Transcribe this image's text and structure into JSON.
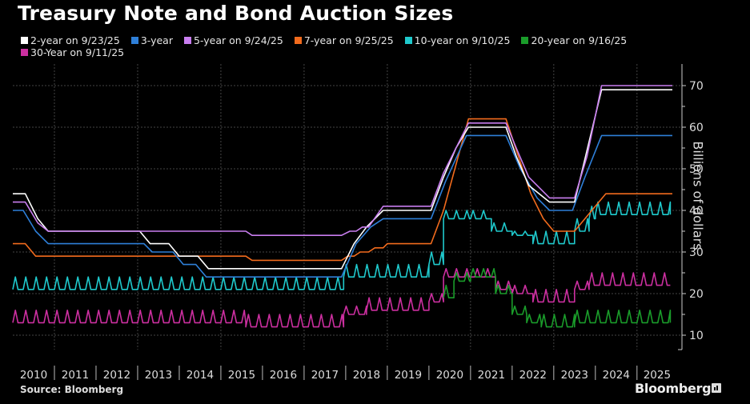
{
  "chart_data": {
    "type": "line",
    "title": "Treasury Note and Bond Auction Sizes",
    "xlabel": "",
    "ylabel": "Billions of dollars",
    "ylim": [
      7,
      74
    ],
    "xlim": [
      2010.0,
      2025.85
    ],
    "y_ticks": [
      10,
      20,
      30,
      40,
      50,
      60,
      70
    ],
    "x_tick_labels": [
      "2010",
      "2011",
      "2012",
      "2013",
      "2014",
      "2015",
      "2016",
      "2017",
      "2018",
      "2019",
      "2020",
      "2021",
      "2022",
      "2023",
      "2024",
      "2025"
    ],
    "grid": true,
    "legend_position": "top-left",
    "y_axis_side": "right",
    "series": [
      {
        "name": "2-year on 9/23/25",
        "color": "#ffffff",
        "kind": "step",
        "points": [
          [
            2010.0,
            44
          ],
          [
            2010.3,
            44
          ],
          [
            2010.6,
            38
          ],
          [
            2010.85,
            35
          ],
          [
            2013.05,
            35
          ],
          [
            2013.3,
            32
          ],
          [
            2013.75,
            32
          ],
          [
            2014.0,
            29
          ],
          [
            2014.45,
            29
          ],
          [
            2014.7,
            26
          ],
          [
            2017.9,
            26
          ],
          [
            2018.2,
            32
          ],
          [
            2018.5,
            36
          ],
          [
            2018.9,
            40
          ],
          [
            2020.05,
            40
          ],
          [
            2020.35,
            48
          ],
          [
            2020.65,
            55
          ],
          [
            2020.95,
            60
          ],
          [
            2021.85,
            60
          ],
          [
            2022.1,
            53
          ],
          [
            2022.4,
            46
          ],
          [
            2022.9,
            42
          ],
          [
            2023.5,
            42
          ],
          [
            2024.15,
            69
          ],
          [
            2025.85,
            69
          ]
        ]
      },
      {
        "name": "3-year",
        "color": "#2e7fd8",
        "kind": "step",
        "points": [
          [
            2010.0,
            40
          ],
          [
            2010.25,
            40
          ],
          [
            2010.55,
            35
          ],
          [
            2010.85,
            32
          ],
          [
            2013.15,
            32
          ],
          [
            2013.35,
            30
          ],
          [
            2013.85,
            30
          ],
          [
            2014.1,
            27
          ],
          [
            2014.4,
            27
          ],
          [
            2014.65,
            24
          ],
          [
            2017.9,
            24
          ],
          [
            2018.25,
            32
          ],
          [
            2018.6,
            36
          ],
          [
            2018.9,
            38
          ],
          [
            2020.05,
            38
          ],
          [
            2020.4,
            47
          ],
          [
            2020.9,
            58
          ],
          [
            2021.85,
            58
          ],
          [
            2022.2,
            50
          ],
          [
            2022.6,
            43
          ],
          [
            2022.9,
            40
          ],
          [
            2023.45,
            40
          ],
          [
            2023.75,
            48
          ],
          [
            2024.15,
            58
          ],
          [
            2025.85,
            58
          ]
        ]
      },
      {
        "name": "5-year on 9/24/25",
        "color": "#c97ef0",
        "kind": "step",
        "points": [
          [
            2010.0,
            42
          ],
          [
            2010.3,
            42
          ],
          [
            2010.6,
            37
          ],
          [
            2010.85,
            35
          ],
          [
            2015.6,
            35
          ],
          [
            2015.75,
            34
          ],
          [
            2017.9,
            34
          ],
          [
            2018.1,
            35
          ],
          [
            2018.25,
            35
          ],
          [
            2018.4,
            36
          ],
          [
            2018.55,
            36
          ],
          [
            2018.9,
            41
          ],
          [
            2020.05,
            41
          ],
          [
            2020.35,
            49
          ],
          [
            2020.95,
            61
          ],
          [
            2021.85,
            61
          ],
          [
            2022.1,
            55
          ],
          [
            2022.4,
            48
          ],
          [
            2022.9,
            43
          ],
          [
            2023.5,
            43
          ],
          [
            2023.8,
            53
          ],
          [
            2024.15,
            70
          ],
          [
            2025.85,
            70
          ]
        ]
      },
      {
        "name": "7-year on 9/25/25",
        "color": "#f26b1d",
        "kind": "step",
        "points": [
          [
            2010.0,
            32
          ],
          [
            2010.3,
            32
          ],
          [
            2010.55,
            29
          ],
          [
            2015.6,
            29
          ],
          [
            2015.75,
            28
          ],
          [
            2017.9,
            28
          ],
          [
            2018.05,
            29
          ],
          [
            2018.2,
            29
          ],
          [
            2018.35,
            30
          ],
          [
            2018.55,
            30
          ],
          [
            2018.7,
            31
          ],
          [
            2018.9,
            31
          ],
          [
            2019.0,
            32
          ],
          [
            2020.05,
            32
          ],
          [
            2020.35,
            40
          ],
          [
            2020.95,
            62
          ],
          [
            2021.85,
            62
          ],
          [
            2022.15,
            53
          ],
          [
            2022.45,
            44
          ],
          [
            2022.75,
            38
          ],
          [
            2023.0,
            35
          ],
          [
            2023.5,
            35
          ],
          [
            2024.0,
            41
          ],
          [
            2024.25,
            44
          ],
          [
            2025.85,
            44
          ]
        ]
      },
      {
        "name": "10-year on 9/10/25",
        "color": "#1fc9cc",
        "kind": "saw",
        "segments": [
          [
            2010.0,
            2017.95,
            24,
            21
          ],
          [
            2017.95,
            2020.0,
            27,
            24
          ],
          [
            2020.0,
            2020.35,
            30,
            27
          ],
          [
            2020.35,
            2021.0,
            40,
            38
          ],
          [
            2021.0,
            2021.5,
            40,
            38
          ],
          [
            2021.5,
            2022.0,
            37,
            35
          ],
          [
            2022.0,
            2022.5,
            35,
            34
          ],
          [
            2022.5,
            2023.5,
            35,
            32
          ],
          [
            2023.5,
            2023.85,
            38,
            35
          ],
          [
            2023.85,
            2024.0,
            41,
            38
          ],
          [
            2024.0,
            2025.8,
            42,
            39
          ]
        ]
      },
      {
        "name": "20-year on 9/16/25",
        "color": "#1a9c2a",
        "kind": "saw",
        "segments": [
          [
            2020.35,
            2020.6,
            22,
            19
          ],
          [
            2020.6,
            2021.0,
            25,
            23
          ],
          [
            2021.0,
            2021.6,
            26,
            24
          ],
          [
            2021.6,
            2022.0,
            22,
            20
          ],
          [
            2022.0,
            2022.35,
            17,
            15
          ],
          [
            2022.35,
            2022.7,
            15,
            13
          ],
          [
            2022.7,
            2023.5,
            15,
            12
          ],
          [
            2023.5,
            2025.8,
            16,
            13
          ]
        ]
      },
      {
        "name": "30-Year on 9/11/25",
        "color": "#cc2fa0",
        "kind": "saw",
        "segments": [
          [
            2010.0,
            2015.6,
            16,
            13
          ],
          [
            2015.6,
            2017.95,
            15,
            12
          ],
          [
            2017.95,
            2018.5,
            17,
            15
          ],
          [
            2018.5,
            2020.0,
            19,
            16
          ],
          [
            2020.0,
            2020.35,
            20,
            18
          ],
          [
            2020.35,
            2021.6,
            26,
            24
          ],
          [
            2021.6,
            2022.0,
            23,
            21
          ],
          [
            2022.0,
            2022.5,
            22,
            20
          ],
          [
            2022.5,
            2023.5,
            21,
            18
          ],
          [
            2023.5,
            2023.85,
            23,
            21
          ],
          [
            2023.85,
            2025.8,
            25,
            22
          ]
        ]
      }
    ]
  },
  "footer": {
    "source": "Source: Bloomberg",
    "brand": "Bloomberg"
  }
}
